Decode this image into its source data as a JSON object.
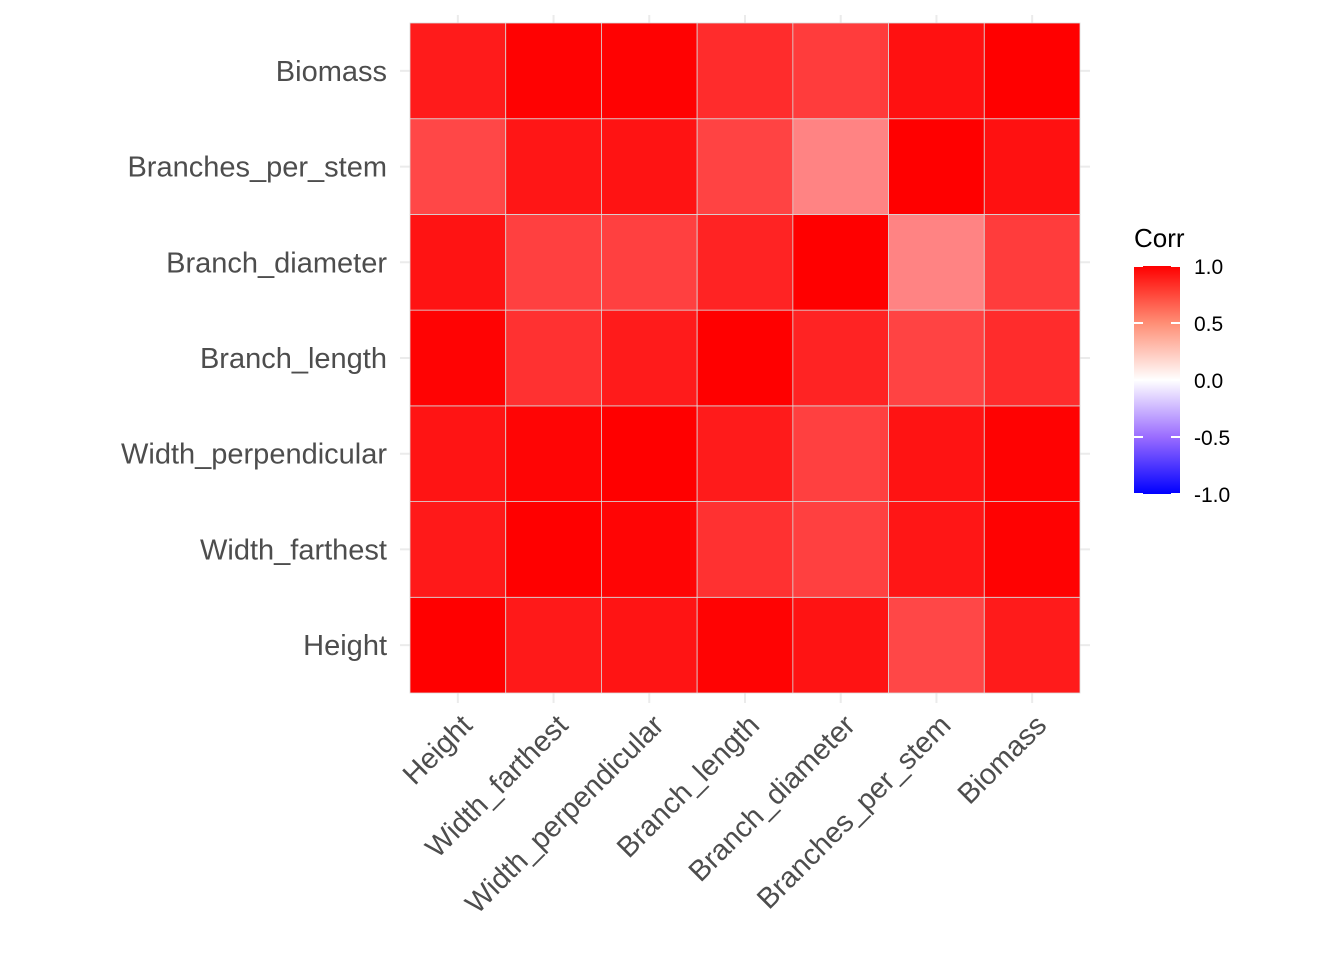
{
  "chart_data": {
    "type": "heatmap",
    "x_categories": [
      "Height",
      "Width_farthest",
      "Width_perpendicular",
      "Branch_length",
      "Branch_diameter",
      "Branches_per_stem",
      "Biomass"
    ],
    "y_categories": [
      "Height",
      "Width_farthest",
      "Width_perpendicular",
      "Branch_length",
      "Branch_diameter",
      "Branches_per_stem",
      "Biomass"
    ],
    "values": [
      [
        1.0,
        0.84,
        0.87,
        0.98,
        0.88,
        0.58,
        0.83
      ],
      [
        0.84,
        1.0,
        0.97,
        0.7,
        0.62,
        0.86,
        0.99
      ],
      [
        0.87,
        0.97,
        1.0,
        0.83,
        0.62,
        0.88,
        0.99
      ],
      [
        0.98,
        0.7,
        0.83,
        1.0,
        0.78,
        0.6,
        0.73
      ],
      [
        0.88,
        0.62,
        0.62,
        0.78,
        1.0,
        0.3,
        0.64
      ],
      [
        0.58,
        0.86,
        0.88,
        0.6,
        0.3,
        1.0,
        0.89
      ],
      [
        0.83,
        0.99,
        0.99,
        0.73,
        0.64,
        0.89,
        1.0
      ]
    ],
    "color_scale": {
      "low": "#0000ff",
      "mid": "#ffffff",
      "high": "#ff0000",
      "limits": [
        -1,
        1
      ]
    },
    "legend": {
      "title": "Corr",
      "ticks": [
        "1.0",
        "0.5",
        "0.0",
        "-0.5",
        "-1.0"
      ],
      "tick_values": [
        1,
        0.5,
        0,
        -0.5,
        -1
      ],
      "placement": "right"
    },
    "grid": true,
    "xlabel": "",
    "ylabel": ""
  }
}
